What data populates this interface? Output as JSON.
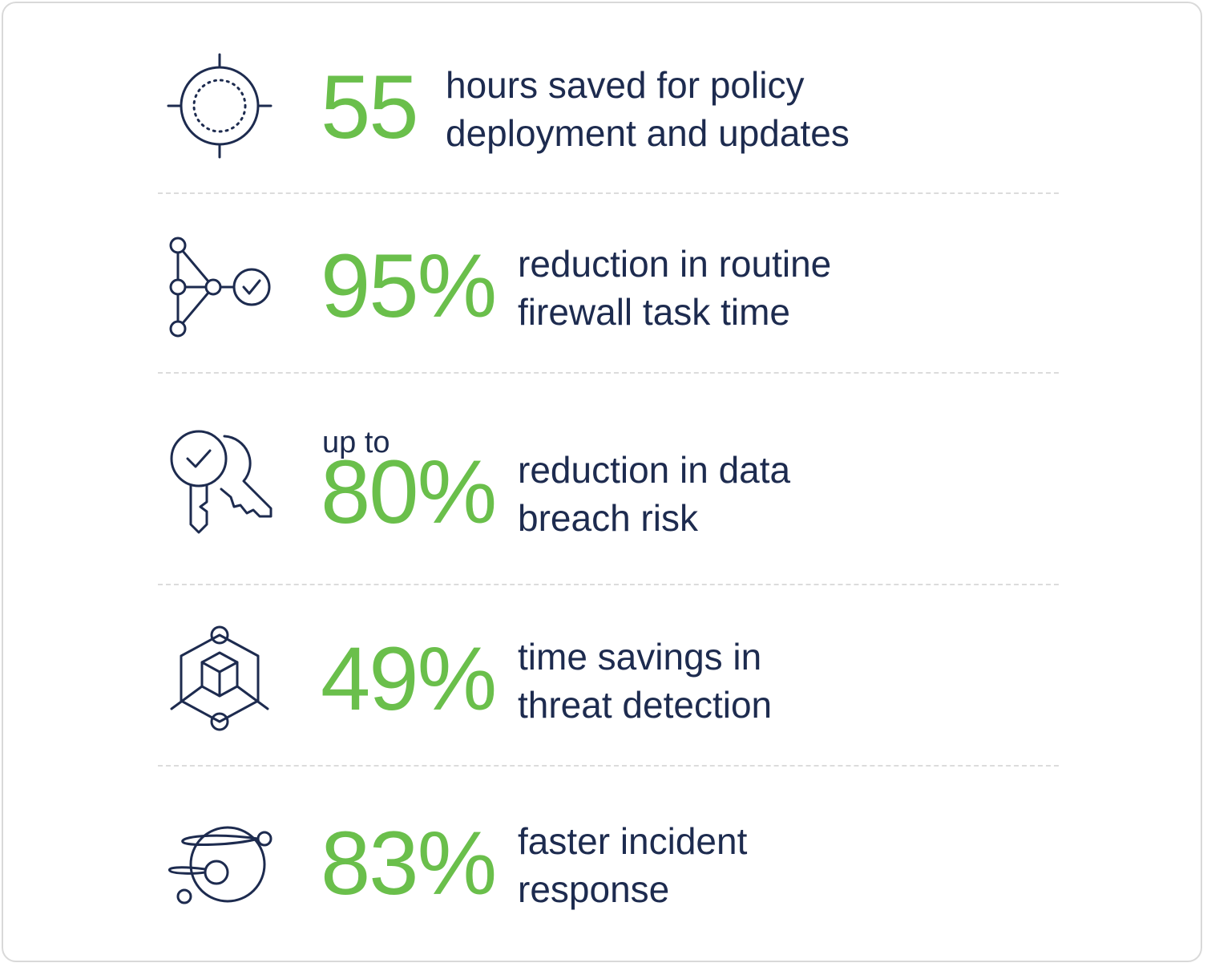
{
  "stats": [
    {
      "value": "55",
      "description": [
        "hours saved for policy",
        "deployment and updates"
      ]
    },
    {
      "value": "95%",
      "description": [
        "reduction in routine",
        "firewall task time"
      ]
    },
    {
      "prefix": "up to",
      "value": "80%",
      "description": [
        "reduction in data",
        "breach risk"
      ]
    },
    {
      "value": "49%",
      "description": [
        "time savings in",
        "threat detection"
      ]
    },
    {
      "value": "83%",
      "description": [
        "faster incident",
        "response"
      ]
    }
  ]
}
